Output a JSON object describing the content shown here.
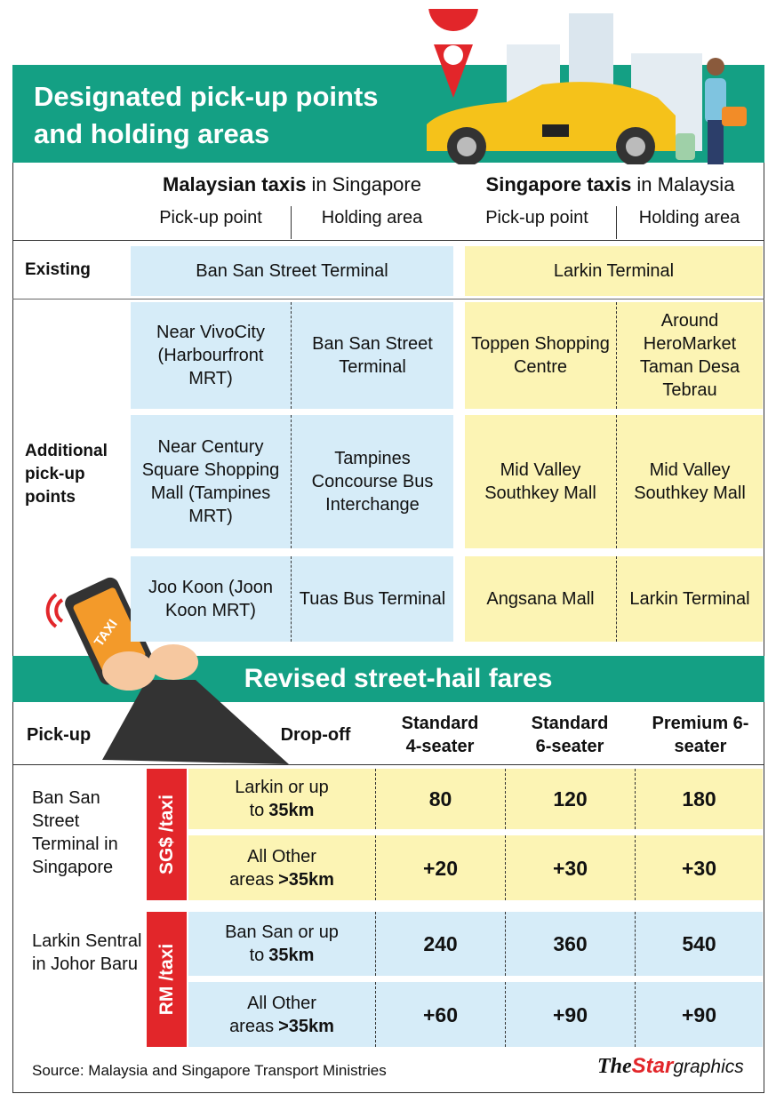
{
  "header": {
    "title": "Designated pick-up points and holding areas"
  },
  "pickup_table": {
    "groups": [
      {
        "bold": "Malaysian taxis",
        "normal": "in Singapore",
        "columns": [
          "Pick-up point",
          "Holding area"
        ]
      },
      {
        "bold": "Singapore taxis",
        "normal": "in Malaysia",
        "columns": [
          "Pick-up point",
          "Holding area"
        ]
      }
    ],
    "existing": {
      "label": "Existing",
      "cells": [
        "Ban San Street Terminal",
        "Larkin Terminal"
      ]
    },
    "additional": {
      "label": "Additional pick-up points",
      "rows": [
        [
          "Near VivoCity (Harbourfront MRT)",
          "Ban San Street Terminal",
          "Toppen Shopping Centre",
          "Around HeroMarket Taman Desa Tebrau"
        ],
        [
          "Near Century Square Shopping Mall (Tampines MRT)",
          "Tampines Concourse Bus Interchange",
          "Mid Valley Southkey Mall",
          "Mid Valley Southkey Mall"
        ],
        [
          "Joo Koon (Joon Koon MRT)",
          "Tuas Bus Terminal",
          "Angsana Mall",
          "Larkin Terminal"
        ]
      ]
    }
  },
  "phone_label": "TAXI",
  "fares": {
    "title": "Revised street-hail fares",
    "headers": [
      "Pick-up",
      "Drop-off",
      "Standard 4-seater",
      "Standard 6-seater",
      "Premium 6-seater"
    ],
    "groups": [
      {
        "pickup": "Ban San Street Terminal in Singapore",
        "currency": "SG$ /taxi",
        "rows": [
          {
            "dropoff": {
              "normal": "Larkin or up to",
              "bold": "35km"
            },
            "fares": [
              "80",
              "120",
              "180"
            ]
          },
          {
            "dropoff": {
              "normal": "All Other areas",
              "bold": ">35km"
            },
            "fares": [
              "+20",
              "+30",
              "+30"
            ]
          }
        ]
      },
      {
        "pickup": "Larkin Sentral in Johor Baru",
        "currency": "RM /taxi",
        "rows": [
          {
            "dropoff": {
              "normal": "Ban San or up to",
              "bold": "35km"
            },
            "fares": [
              "240",
              "360",
              "540"
            ]
          },
          {
            "dropoff": {
              "normal": "All Other areas",
              "bold": ">35km"
            },
            "fares": [
              "+60",
              "+90",
              "+90"
            ]
          }
        ]
      }
    ]
  },
  "footer": {
    "source": "Source: Malaysia and Singapore Transport Ministries",
    "logo": {
      "the": "The",
      "star": "Star",
      "graphics": "graphics"
    }
  }
}
